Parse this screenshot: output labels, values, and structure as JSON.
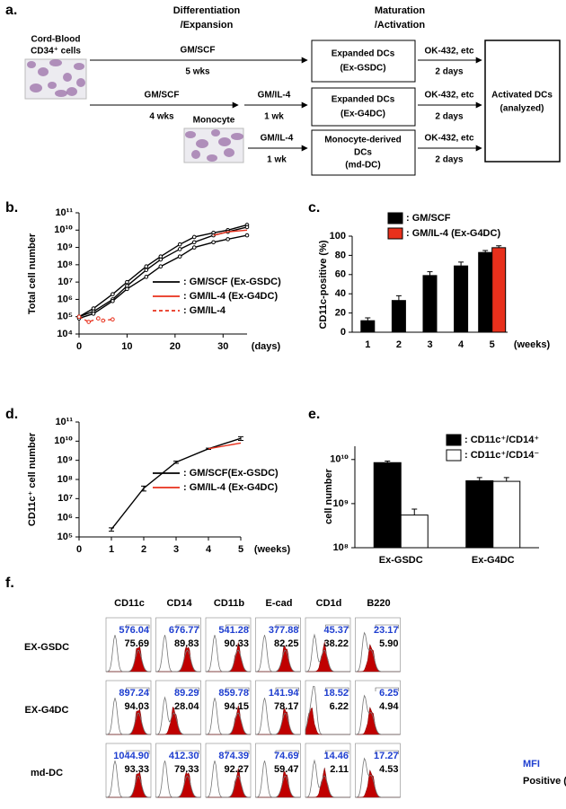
{
  "diagram": {
    "label": "a.",
    "headers": [
      [
        "Differentiation",
        "/Expansion"
      ],
      [
        "Maturation",
        "/Activation"
      ]
    ],
    "source": [
      "Cord-Blood",
      "CD34⁺ cells"
    ],
    "monocyte": "Monocyte",
    "arrows": [
      {
        "top": "GM/SCF",
        "bottom": "5 wks"
      },
      {
        "top": "GM/SCF",
        "bottom": "4 wks"
      },
      {
        "top": "GM/IL-4",
        "bottom": "1 wk"
      },
      {
        "top": "GM/IL-4",
        "bottom": "1 wk"
      },
      {
        "top": "OK-432, etc",
        "bottom": "2 days"
      },
      {
        "top": "OK-432, etc",
        "bottom": "2 days"
      },
      {
        "top": "OK-432, etc",
        "bottom": "2 days"
      }
    ],
    "boxes": [
      [
        "Expanded DCs",
        "(Ex-GSDC)"
      ],
      [
        "Expanded DCs",
        "(Ex-G4DC)"
      ],
      [
        "Monocyte-derived",
        "DCs",
        "(md-DC)"
      ]
    ],
    "final": [
      "Activated DCs",
      "(analyzed)"
    ]
  },
  "chart_data": [
    {
      "label": "b.",
      "type": "line",
      "ylabel": "Total cell number",
      "xlabel": "(days)",
      "xlim": [
        0,
        35
      ],
      "xticks": [
        0,
        10,
        20,
        30
      ],
      "log_y": true,
      "ylim": [
        10000.0,
        100000000000.0
      ],
      "yticks": [
        {
          "value": 10000.0,
          "label": "10⁴"
        },
        {
          "value": 100000.0,
          "label": "10⁵"
        },
        {
          "value": 1000000.0,
          "label": "10⁶"
        },
        {
          "value": 10000000.0,
          "label": "10⁷"
        },
        {
          "value": 100000000.0,
          "label": "10⁸"
        },
        {
          "value": 1000000000.0,
          "label": "10⁹"
        },
        {
          "value": 10000000000.0,
          "label": "10¹⁰"
        },
        {
          "value": 100000000000.0,
          "label": "10¹¹"
        }
      ],
      "series": [
        {
          "name": ": GM/SCF (Ex-GSDC)",
          "color": "#000000",
          "markers": true,
          "x": [
            0,
            3,
            7,
            10,
            14,
            17,
            21,
            24,
            28,
            31,
            35
          ],
          "values": [
            100000.0,
            300000.0,
            2000000.0,
            10000000.0,
            80000000.0,
            300000000.0,
            1500000000.0,
            4000000000.0,
            7000000000.0,
            10000000000.0,
            20000000000.0
          ]
        },
        {
          "color": "#000000",
          "markers": true,
          "x": [
            0,
            3,
            7,
            10,
            14,
            17,
            21,
            24,
            28,
            31,
            35
          ],
          "values": [
            100000.0,
            200000.0,
            1000000.0,
            6000000.0,
            50000000.0,
            200000000.0,
            800000000.0,
            2000000000.0,
            5000000000.0,
            8000000000.0,
            15000000000.0
          ]
        },
        {
          "color": "#000000",
          "markers": true,
          "x": [
            0,
            3,
            7,
            10,
            14,
            17,
            21,
            24,
            28,
            31,
            35
          ],
          "values": [
            80000.0,
            150000.0,
            800000.0,
            4000000.0,
            20000000.0,
            80000000.0,
            300000000.0,
            1000000000.0,
            2000000000.0,
            3000000000.0,
            5000000000.0
          ]
        },
        {
          "name": ": GM/IL-4  (Ex-G4DC)",
          "color": "#e8301c",
          "x": [
            28,
            31,
            35
          ],
          "values": [
            5000000000.0,
            8000000000.0,
            10000000000.0
          ]
        },
        {
          "name": ": GM/IL-4",
          "color": "#e8301c",
          "dash": true,
          "markers": true,
          "x": [
            0,
            2,
            4,
            5,
            7
          ],
          "values": [
            100000.0,
            50000.0,
            80000.0,
            60000.0,
            70000.0
          ]
        }
      ]
    },
    {
      "label": "c.",
      "type": "bar",
      "ylabel": "CD11c-positive (%)",
      "xlabel": "(weeks)",
      "categories": [
        "1",
        "2",
        "3",
        "4",
        "5"
      ],
      "ylim": [
        0,
        100
      ],
      "yticks": [
        0,
        20,
        40,
        60,
        80,
        100
      ],
      "series": [
        {
          "name": ": GM/SCF",
          "color": "#000000",
          "values": [
            12,
            33,
            59,
            69,
            83
          ],
          "errors": [
            3,
            5,
            4,
            4,
            2
          ]
        },
        {
          "name": ": GM/IL-4 (Ex-G4DC)",
          "color": "#e8301c",
          "values": [
            null,
            null,
            null,
            null,
            88
          ],
          "errors": [
            null,
            null,
            null,
            null,
            2
          ]
        }
      ]
    },
    {
      "label": "d.",
      "type": "line",
      "ylabel": "CD11c⁺ cell number",
      "xlabel": "(weeks)",
      "xlim": [
        0,
        5
      ],
      "xticks": [
        0,
        1,
        2,
        3,
        4,
        5
      ],
      "log_y": true,
      "ylim": [
        100000.0,
        100000000000.0
      ],
      "yticks": [
        {
          "value": 100000.0,
          "label": "10⁵"
        },
        {
          "value": 1000000.0,
          "label": "10⁶"
        },
        {
          "value": 10000000.0,
          "label": "10⁷"
        },
        {
          "value": 100000000.0,
          "label": "10⁸"
        },
        {
          "value": 1000000000.0,
          "label": "10⁹"
        },
        {
          "value": 10000000000.0,
          "label": "10¹⁰"
        },
        {
          "value": 100000000000.0,
          "label": "10¹¹"
        }
      ],
      "series": [
        {
          "name": ": GM/SCF(Ex-GSDC)",
          "color": "#000000",
          "x": [
            1,
            2,
            3,
            4,
            5
          ],
          "values": [
            250000.0,
            35000000.0,
            800000000.0,
            4000000000.0,
            14000000000.0
          ],
          "errors": [
            50000.0,
            10000000.0,
            100000000.0,
            300000000.0,
            3000000000.0
          ]
        },
        {
          "name": ": GM/IL-4 (Ex-G4DC)",
          "color": "#e8301c",
          "x": [
            4,
            5
          ],
          "values": [
            4000000000.0,
            8000000000.0
          ]
        }
      ]
    },
    {
      "label": "e.",
      "type": "bar",
      "ylabel": "cell number",
      "categories": [
        "Ex-GSDC",
        "Ex-G4DC"
      ],
      "log_y": true,
      "ylim": [
        100000000.0,
        20000000000.0
      ],
      "yticks": [
        {
          "value": 100000000.0,
          "label": "10⁸"
        },
        {
          "value": 1000000000.0,
          "label": "10⁹"
        },
        {
          "value": 10000000000.0,
          "label": "10¹⁰"
        }
      ],
      "series": [
        {
          "name": ": CD11c⁺/CD14⁺",
          "color": "#000000",
          "values": [
            8500000000.0,
            3300000000.0
          ],
          "errors": [
            700000000.0,
            600000000.0
          ]
        },
        {
          "name": ": CD11c⁺/CD14⁻",
          "color": "#ffffff",
          "values": [
            550000000.0,
            3200000000.0
          ],
          "errors": [
            200000000.0,
            700000000.0
          ]
        }
      ]
    }
  ],
  "flow": {
    "label": "f.",
    "columns": [
      "CD11c",
      "CD14",
      "CD11b",
      "E-cad",
      "CD1d",
      "B220"
    ],
    "rows": [
      {
        "name": "EX-GSDC",
        "mfi": [
          "576.04",
          "676.77",
          "541.28",
          "377.88",
          "45.37",
          "23.17"
        ],
        "positive": [
          "75.69",
          "89.83",
          "90.33",
          "82.25",
          "38.22",
          "5.90"
        ]
      },
      {
        "name": "EX-G4DC",
        "mfi": [
          "897.24",
          "89.29",
          "859.78",
          "141.94",
          "18.52",
          "6.25"
        ],
        "positive": [
          "94.03",
          "28.04",
          "94.15",
          "78.17",
          "6.22",
          "4.94"
        ]
      },
      {
        "name": "md-DC",
        "mfi": [
          "1044.90",
          "412.30",
          "874.39",
          "74.69",
          "14.46",
          "17.27"
        ],
        "positive": [
          "93.33",
          "79.33",
          "92.27",
          "59.47",
          "2.11",
          "4.53"
        ]
      }
    ],
    "legend": [
      "MFI",
      "Positive (%)"
    ]
  }
}
